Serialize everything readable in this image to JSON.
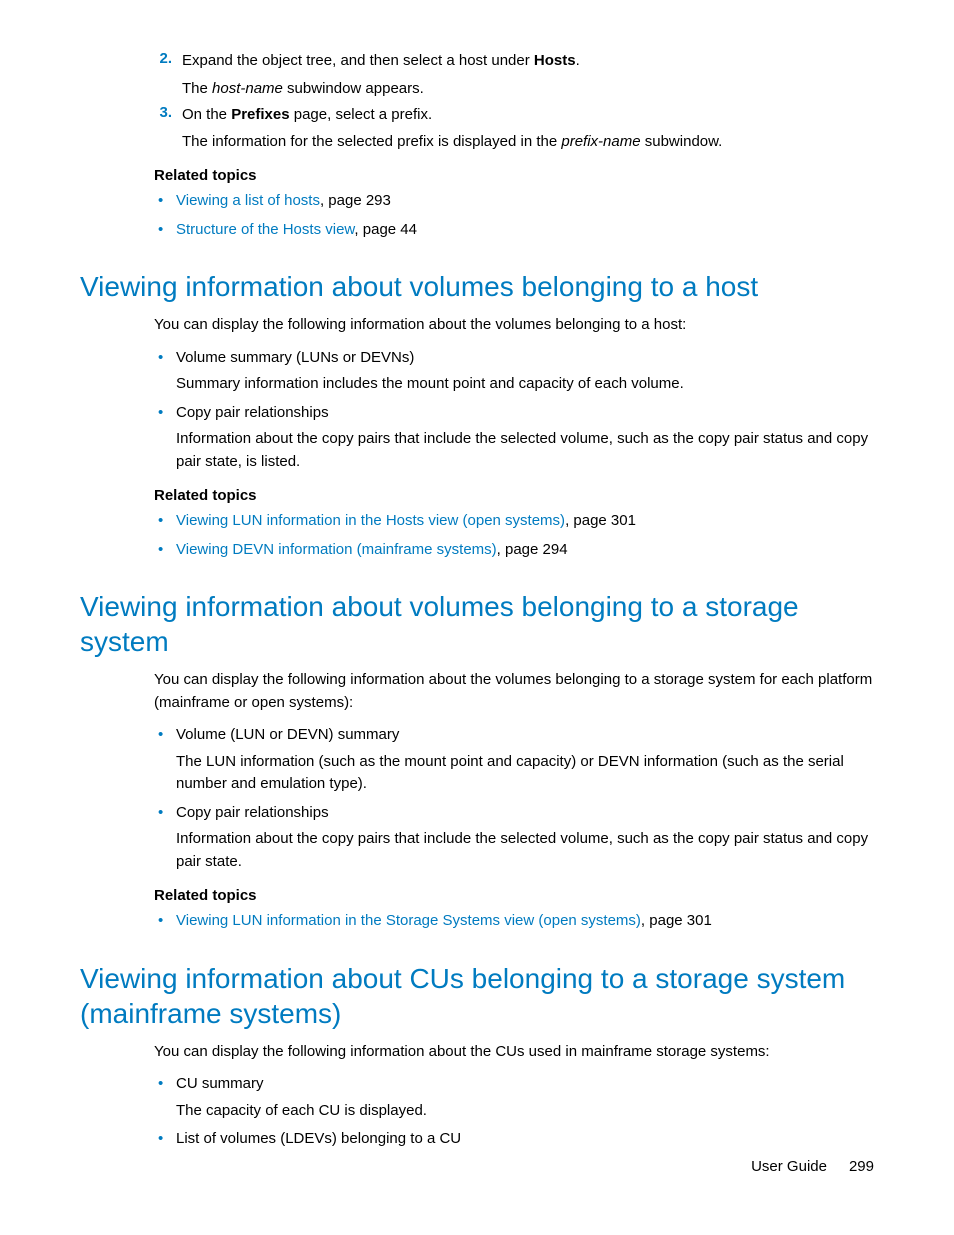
{
  "colors": {
    "accent": "#007bc0",
    "text": "#000000",
    "background": "#ffffff"
  },
  "typography": {
    "body_font": "Arial, Helvetica, sans-serif",
    "body_size_pt": 11,
    "heading_size_pt": 21,
    "heading_weight": "normal"
  },
  "steps": {
    "s2": {
      "num": "2.",
      "text_pre": "Expand the object tree, and then select a host under ",
      "bold": "Hosts",
      "text_post": ".",
      "sub_pre": "The ",
      "sub_italic": "host-name",
      "sub_post": " subwindow appears."
    },
    "s3": {
      "num": "3.",
      "text_pre": "On the ",
      "bold": "Prefixes",
      "text_post": " page, select a prefix.",
      "sub_pre": "The information for the selected prefix is displayed in the ",
      "sub_italic": "prefix-name",
      "sub_post": " subwindow."
    }
  },
  "related0": {
    "heading": "Related topics",
    "items": [
      {
        "link": "Viewing a list of hosts",
        "suffix": ", page 293"
      },
      {
        "link": "Structure of the Hosts view",
        "suffix": ", page 44"
      }
    ]
  },
  "sec1": {
    "title": "Viewing information about volumes belonging to a host",
    "intro": "You can display the following information about the volumes belonging to a host:",
    "bullets": [
      {
        "title": "Volume summary (LUNs or DEVNs)",
        "desc": "Summary information includes the mount point and capacity of each volume."
      },
      {
        "title": "Copy pair relationships",
        "desc": "Information about the copy pairs that include the selected volume, such as the copy pair status and copy pair state, is listed."
      }
    ],
    "related": {
      "heading": "Related topics",
      "items": [
        {
          "link": "Viewing LUN information in the Hosts view (open systems)",
          "suffix": ", page 301"
        },
        {
          "link": "Viewing DEVN information (mainframe systems)",
          "suffix": ", page 294"
        }
      ]
    }
  },
  "sec2": {
    "title": "Viewing information about volumes belonging to a storage system",
    "intro": "You can display the following information about the volumes belonging to a storage system for each platform (mainframe or open systems):",
    "bullets": [
      {
        "title": "Volume (LUN or DEVN) summary",
        "desc": "The LUN information (such as the mount point and capacity) or DEVN information (such as the serial number and emulation type)."
      },
      {
        "title": "Copy pair relationships",
        "desc": "Information about the copy pairs that include the selected volume, such as the copy pair status and copy pair state."
      }
    ],
    "related": {
      "heading": "Related topics",
      "items": [
        {
          "link": "Viewing LUN information in the Storage Systems view (open systems)",
          "suffix": ", page 301"
        }
      ]
    }
  },
  "sec3": {
    "title": "Viewing information about CUs belonging to a storage system (mainframe systems)",
    "intro": "You can display the following information about the CUs used in mainframe storage systems:",
    "bullets": [
      {
        "title": "CU summary",
        "desc": "The capacity of each CU is displayed."
      },
      {
        "title": "List of volumes (LDEVs) belonging to a CU",
        "desc": ""
      }
    ]
  },
  "footer": {
    "label": "User Guide",
    "page": "299"
  }
}
